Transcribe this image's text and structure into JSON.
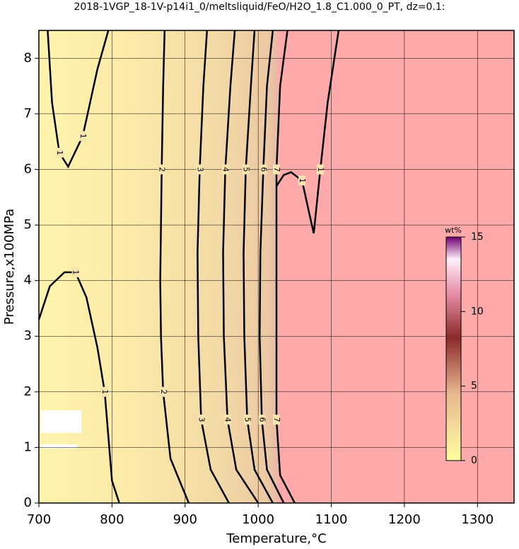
{
  "chart_data": {
    "type": "contour",
    "title": "2018-1VGP_18-1V-p14i1_0/meltsliquid/FeO/H2O_1.8_C1.000_0_PT, dz=0.1:",
    "x_label": "Temperature,°C",
    "y_label": "Pressure,x100MPa",
    "xlim": [
      700,
      1350
    ],
    "ylim": [
      0,
      8.5
    ],
    "xticks": [
      700,
      800,
      900,
      1000,
      1100,
      1200,
      1300
    ],
    "yticks": [
      0,
      1,
      2,
      3,
      4,
      5,
      6,
      7,
      8
    ],
    "grid": true,
    "contours": [
      {
        "level": 1,
        "x": [
          712,
          718,
          728,
          740,
          760,
          780,
          795
        ],
        "y": [
          8.5,
          7.2,
          6.3,
          6.05,
          6.6,
          7.8,
          8.5
        ]
      },
      {
        "level": 1,
        "x": [
          700,
          715,
          735,
          750,
          765,
          780,
          790,
          800,
          810
        ],
        "y": [
          3.3,
          3.9,
          4.15,
          4.15,
          3.7,
          2.8,
          2.0,
          0.4,
          0
        ]
      },
      {
        "level": 1,
        "x": [
          1025,
          1035,
          1045,
          1060,
          1070,
          1076,
          1085,
          1095,
          1110
        ],
        "y": [
          5.7,
          5.9,
          5.95,
          5.8,
          5.2,
          4.85,
          6.0,
          7.2,
          8.5
        ]
      },
      {
        "level": 2,
        "x": [
          905,
          880,
          870,
          867,
          866,
          868,
          870,
          872
        ],
        "y": [
          0,
          0.8,
          2,
          3,
          4,
          6,
          7.5,
          8.5
        ]
      },
      {
        "level": 3,
        "x": [
          960,
          935,
          922,
          918,
          917,
          920,
          925,
          930
        ],
        "y": [
          0,
          0.6,
          1.5,
          3,
          4.5,
          6,
          7.5,
          8.5
        ]
      },
      {
        "level": 4,
        "x": [
          1000,
          970,
          958,
          953,
          952,
          955,
          962,
          968
        ],
        "y": [
          0,
          0.6,
          1.5,
          3,
          4.5,
          6,
          7.5,
          8.5
        ]
      },
      {
        "level": 5,
        "x": [
          1020,
          995,
          985,
          981,
          980,
          983,
          990,
          995
        ],
        "y": [
          0,
          0.6,
          1.5,
          3,
          4.5,
          6,
          7.5,
          8.5
        ]
      },
      {
        "level": 6,
        "x": [
          1035,
          1012,
          1005,
          1002,
          1003,
          1007,
          1012,
          1020
        ],
        "y": [
          0,
          0.6,
          1.5,
          3,
          4.5,
          6,
          7.5,
          8.5
        ]
      },
      {
        "level": 7,
        "x": [
          1050,
          1030,
          1025,
          1025,
          1025,
          1025,
          1030,
          1040
        ],
        "y": [
          0,
          0.5,
          1.5,
          3,
          4.5,
          6,
          7.5,
          8.5
        ]
      }
    ],
    "colorbar": {
      "label": "wt%",
      "lim": [
        0,
        15
      ],
      "ticks": [
        0,
        5,
        10,
        15
      ]
    }
  }
}
